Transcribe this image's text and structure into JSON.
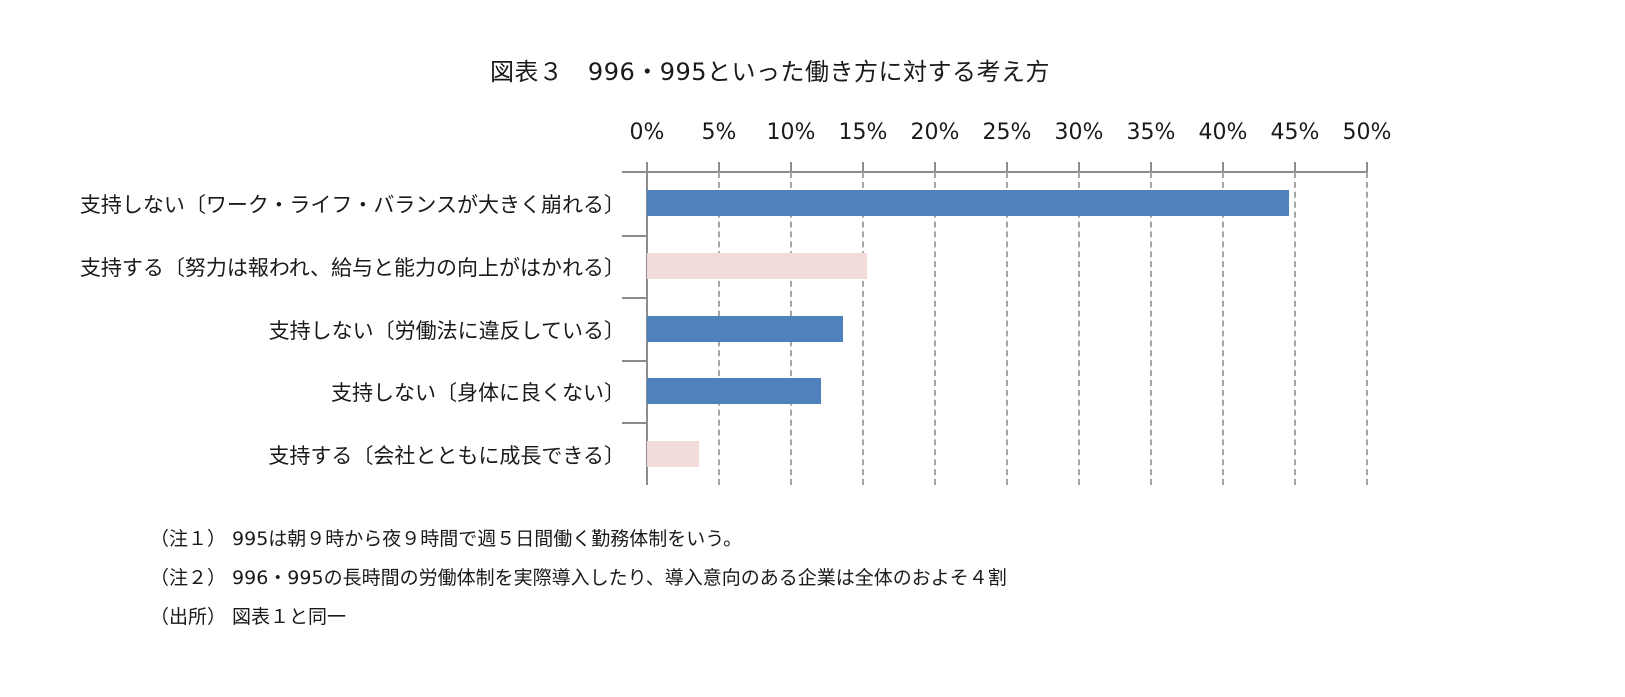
{
  "chart_data": {
    "type": "bar",
    "orientation": "horizontal",
    "title": "図表３　996・995といった働き方に対する考え方",
    "xlabel": "",
    "ylabel": "",
    "xlim": [
      0,
      50
    ],
    "tick_labels": [
      "0%",
      "5%",
      "10%",
      "15%",
      "20%",
      "25%",
      "30%",
      "35%",
      "40%",
      "45%",
      "50%"
    ],
    "axis_position": "top",
    "grid": "vertical dashed",
    "legend": "none",
    "categories": [
      "支持しない〔ワーク・ライフ・バランスが大きく崩れる〕",
      "支持する〔努力は報われ、給与と能力の向上がはかれる〕",
      "支持しない〔労働法に違反している〕",
      "支持しない〔身体に良くない〕",
      "支持する〔会社とともに成長できる〕"
    ],
    "values": [
      44.6,
      15.3,
      13.6,
      12.1,
      3.6
    ],
    "colors": [
      "#4f81bd",
      "#f2dcdb",
      "#4f81bd",
      "#4f81bd",
      "#f2dcdb"
    ]
  },
  "notes": [
    "（注１）  995は朝９時から夜９時間で週５日間働く勤務体制をいう。",
    "（注２）  996・995の長時間の労働体制を実際導入したり、導入意向のある企業は全体のおよそ４割",
    "（出所）  図表１と同一"
  ]
}
